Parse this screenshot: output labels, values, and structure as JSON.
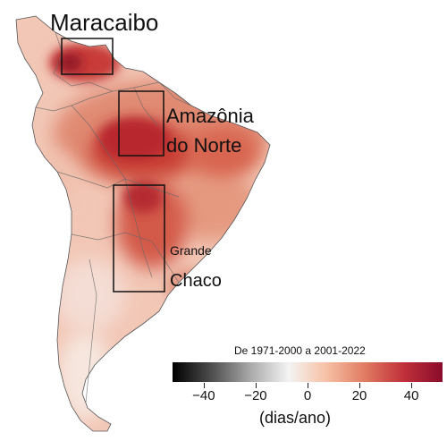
{
  "labels": {
    "maracaibo": "Maracaibo",
    "amazonia_line1": "Amazônia",
    "amazonia_line2": "do Norte",
    "chaco_line1": "Grande",
    "chaco_line2": "Chaco"
  },
  "legend": {
    "title": "De 1971-2000 a 2001-2022",
    "unit": "(dias/ano)",
    "ticks": [
      "−40",
      "−20",
      "0",
      "20",
      "40"
    ],
    "range": [
      -52,
      52
    ],
    "colors": [
      "#000000",
      "#4d4d4d",
      "#a8a8a8",
      "#f4f4f4",
      "#f6c0a4",
      "#e07a61",
      "#c0303a",
      "#8a0b2a"
    ]
  }
}
